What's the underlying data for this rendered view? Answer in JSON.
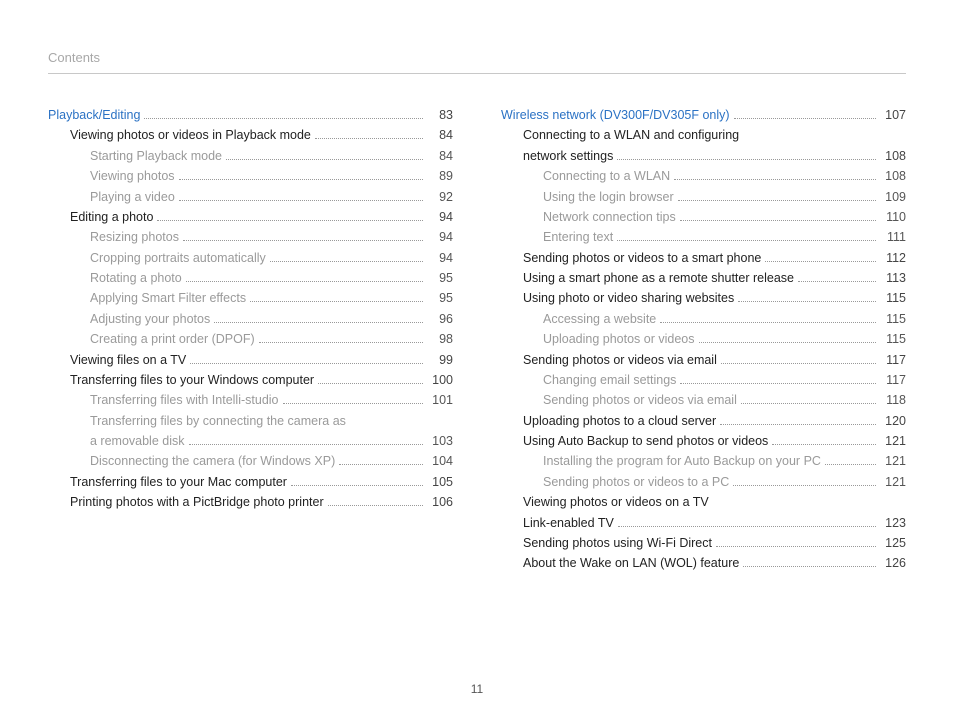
{
  "header": "Contents",
  "page_number": "11",
  "colors": {
    "link": "#2b72c4",
    "muted": "#9a9a9a",
    "text": "#222222",
    "rule": "#c8c8c8"
  },
  "left_column": [
    {
      "level": 0,
      "label": "Playback/Editing",
      "page": "83"
    },
    {
      "level": 1,
      "label": "Viewing photos or videos in Playback mode",
      "page": "84"
    },
    {
      "level": 2,
      "label": "Starting Playback mode",
      "page": "84"
    },
    {
      "level": 2,
      "label": "Viewing photos",
      "page": "89"
    },
    {
      "level": 2,
      "label": "Playing a video",
      "page": "92"
    },
    {
      "level": 1,
      "label": "Editing a photo",
      "page": "94"
    },
    {
      "level": 2,
      "label": "Resizing photos",
      "page": "94"
    },
    {
      "level": 2,
      "label": "Cropping portraits automatically",
      "page": "94"
    },
    {
      "level": 2,
      "label": "Rotating a photo",
      "page": "95"
    },
    {
      "level": 2,
      "label": "Applying Smart Filter effects",
      "page": "95"
    },
    {
      "level": 2,
      "label": "Adjusting your photos",
      "page": "96"
    },
    {
      "level": 2,
      "label": "Creating a print order (DPOF)",
      "page": "98"
    },
    {
      "level": 1,
      "label": "Viewing files on a TV",
      "page": "99"
    },
    {
      "level": 1,
      "label": "Transferring files to your Windows computer",
      "page": "100"
    },
    {
      "level": 2,
      "label": "Transferring files with Intelli-studio",
      "page": "101"
    },
    {
      "level": 2,
      "label": "Transferring files by connecting the camera as a removable disk",
      "page": "103",
      "wrap": true
    },
    {
      "level": 2,
      "label": "Disconnecting the camera (for Windows XP)",
      "page": "104"
    },
    {
      "level": 1,
      "label": "Transferring files to your Mac computer",
      "page": "105"
    },
    {
      "level": 1,
      "label": "Printing photos with a PictBridge photo printer",
      "page": "106"
    }
  ],
  "right_column": [
    {
      "level": 0,
      "label": "Wireless network (DV300F/DV305F only)",
      "page": "107"
    },
    {
      "level": 1,
      "label": "Connecting to a WLAN and configuring network settings",
      "page": "108",
      "wrap": true
    },
    {
      "level": 2,
      "label": "Connecting to a WLAN",
      "page": "108"
    },
    {
      "level": 2,
      "label": "Using the login browser",
      "page": "109"
    },
    {
      "level": 2,
      "label": "Network connection tips",
      "page": "110"
    },
    {
      "level": 2,
      "label": "Entering text",
      "page": "111"
    },
    {
      "level": 1,
      "label": "Sending photos or videos to a smart phone",
      "page": "112"
    },
    {
      "level": 1,
      "label": "Using a smart phone as a remote shutter release",
      "page": "113"
    },
    {
      "level": 1,
      "label": "Using photo or video sharing websites",
      "page": "115"
    },
    {
      "level": 2,
      "label": "Accessing a website",
      "page": "115"
    },
    {
      "level": 2,
      "label": "Uploading photos or videos",
      "page": "115"
    },
    {
      "level": 1,
      "label": "Sending photos or videos via email",
      "page": "117"
    },
    {
      "level": 2,
      "label": "Changing email settings",
      "page": "117"
    },
    {
      "level": 2,
      "label": "Sending photos or videos via email",
      "page": "118"
    },
    {
      "level": 1,
      "label": "Uploading photos to a cloud server",
      "page": "120"
    },
    {
      "level": 1,
      "label": "Using Auto Backup to send photos or videos",
      "page": "121"
    },
    {
      "level": 2,
      "label": "Installing the program for Auto Backup on your PC",
      "page": "121"
    },
    {
      "level": 2,
      "label": "Sending photos or videos to a PC",
      "page": "121"
    },
    {
      "level": 1,
      "label": "Viewing photos or videos on a TV Link-enabled TV",
      "page": "123",
      "wrap": true
    },
    {
      "level": 1,
      "label": "Sending photos using Wi-Fi Direct",
      "page": "125"
    },
    {
      "level": 1,
      "label": "About the Wake on LAN (WOL) feature",
      "page": "126"
    }
  ]
}
